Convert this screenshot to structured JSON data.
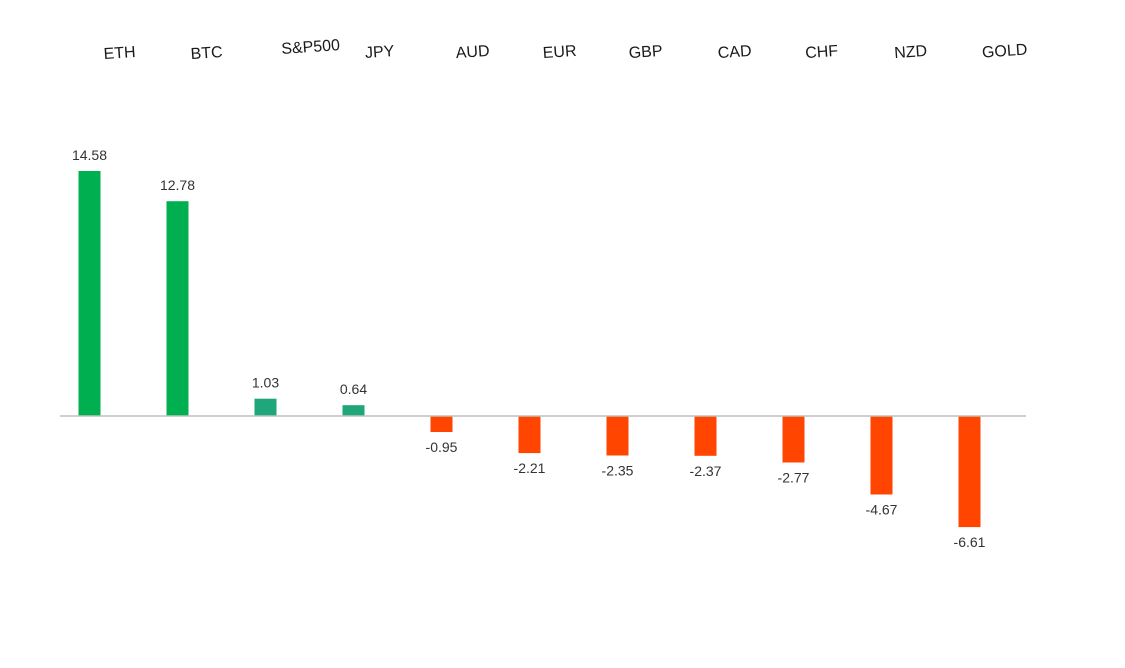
{
  "chart_data": {
    "type": "bar",
    "title": "",
    "xlabel": "",
    "ylabel": "",
    "categories": [
      "ETH",
      "BTC",
      "S&P500",
      "JPY",
      "AUD",
      "EUR",
      "GBP",
      "CAD",
      "CHF",
      "NZD",
      "GOLD"
    ],
    "values": [
      14.58,
      12.78,
      1.03,
      0.64,
      -0.95,
      -2.21,
      -2.35,
      -2.37,
      -2.77,
      -4.67,
      -6.61
    ],
    "value_labels": [
      "14.58",
      "12.78",
      "1.03",
      "0.64",
      "-0.95",
      "-2.21",
      "-2.35",
      "-2.37",
      "-2.77",
      "-4.67",
      "-6.61"
    ],
    "ylim": [
      -6.61,
      14.58
    ],
    "category_labels_position": "top",
    "grid": false,
    "legend": "none",
    "colors": {
      "positive_crypto": "#00B050",
      "positive_other": "#1FA67A",
      "negative": "#FF4500",
      "axis": "#BFBFBF"
    }
  }
}
